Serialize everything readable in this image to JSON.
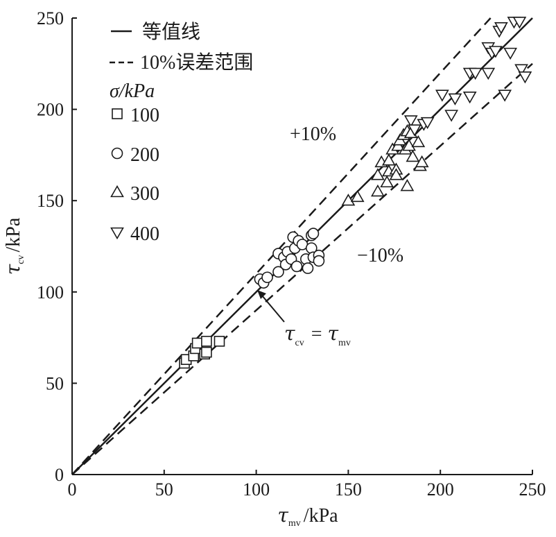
{
  "chart_data": {
    "type": "scatter",
    "xlabel": {
      "symbol": "τ",
      "sub": "mv",
      "unit": "/kPa"
    },
    "ylabel": {
      "symbol": "τ",
      "sub": "cv",
      "unit": "/kPa"
    },
    "xlim": [
      0,
      250
    ],
    "ylim": [
      0,
      250
    ],
    "xticks": [
      "0",
      "50",
      "100",
      "150",
      "200",
      "250"
    ],
    "yticks": [
      "0",
      "50",
      "100",
      "150",
      "200",
      "250"
    ],
    "legend": {
      "position": "top-left",
      "line_label": "等值线",
      "dashed_label": "10%误差范围",
      "sigma_title": "σ/kPa"
    },
    "annotations": {
      "plus": "+10%",
      "minus": "−10%",
      "equality": {
        "left": "τ",
        "left_sub": "cv",
        "eq": "=",
        "right": "τ",
        "right_sub": "mv"
      }
    },
    "reference_lines": [
      {
        "name": "等值线",
        "slope": 1.0,
        "style": "solid"
      },
      {
        "name": "+10%",
        "slope": 1.1,
        "style": "dashed"
      },
      {
        "name": "-10%",
        "slope": 0.9,
        "style": "dashed"
      }
    ],
    "series": [
      {
        "name": "100",
        "marker": "square",
        "points": [
          [
            61,
            61
          ],
          [
            62,
            63
          ],
          [
            66,
            65
          ],
          [
            67,
            69
          ],
          [
            68,
            72
          ],
          [
            72,
            66
          ],
          [
            73,
            67
          ],
          [
            73,
            73
          ],
          [
            80,
            73
          ]
        ]
      },
      {
        "name": "200",
        "marker": "circle",
        "points": [
          [
            102,
            107
          ],
          [
            104,
            105
          ],
          [
            106,
            108
          ],
          [
            112,
            111
          ],
          [
            112,
            121
          ],
          [
            115,
            119
          ],
          [
            116,
            115
          ],
          [
            117,
            122
          ],
          [
            119,
            118
          ],
          [
            120,
            130
          ],
          [
            121,
            124
          ],
          [
            122,
            114
          ],
          [
            123,
            128
          ],
          [
            125,
            126
          ],
          [
            127,
            118
          ],
          [
            128,
            113
          ],
          [
            130,
            124
          ],
          [
            130,
            131
          ],
          [
            131,
            119
          ],
          [
            131,
            132
          ],
          [
            134,
            120
          ],
          [
            134,
            117
          ]
        ]
      },
      {
        "name": "300",
        "marker": "triangle-up",
        "points": [
          [
            150,
            150
          ],
          [
            155,
            152
          ],
          [
            166,
            155
          ],
          [
            166,
            164
          ],
          [
            168,
            171
          ],
          [
            171,
            160
          ],
          [
            172,
            166
          ],
          [
            172,
            172
          ],
          [
            174,
            178
          ],
          [
            176,
            167
          ],
          [
            176,
            164
          ],
          [
            177,
            180
          ],
          [
            178,
            183
          ],
          [
            180,
            186
          ],
          [
            181,
            178
          ],
          [
            182,
            158
          ],
          [
            182,
            188
          ],
          [
            183,
            180
          ],
          [
            184,
            187
          ],
          [
            185,
            174
          ],
          [
            188,
            182
          ],
          [
            189,
            169
          ],
          [
            190,
            171
          ]
        ]
      },
      {
        "name": "400",
        "marker": "triangle-down",
        "points": [
          [
            184,
            194
          ],
          [
            186,
            189
          ],
          [
            191,
            192
          ],
          [
            193,
            193
          ],
          [
            201,
            208
          ],
          [
            206,
            197
          ],
          [
            208,
            206
          ],
          [
            216,
            207
          ],
          [
            216,
            220
          ],
          [
            219,
            220
          ],
          [
            226,
            220
          ],
          [
            226,
            234
          ],
          [
            228,
            231
          ],
          [
            230,
            232
          ],
          [
            232,
            243
          ],
          [
            233,
            245
          ],
          [
            235,
            208
          ],
          [
            238,
            231
          ],
          [
            240,
            248
          ],
          [
            243,
            248
          ],
          [
            244,
            222
          ],
          [
            246,
            218
          ]
        ]
      }
    ]
  }
}
